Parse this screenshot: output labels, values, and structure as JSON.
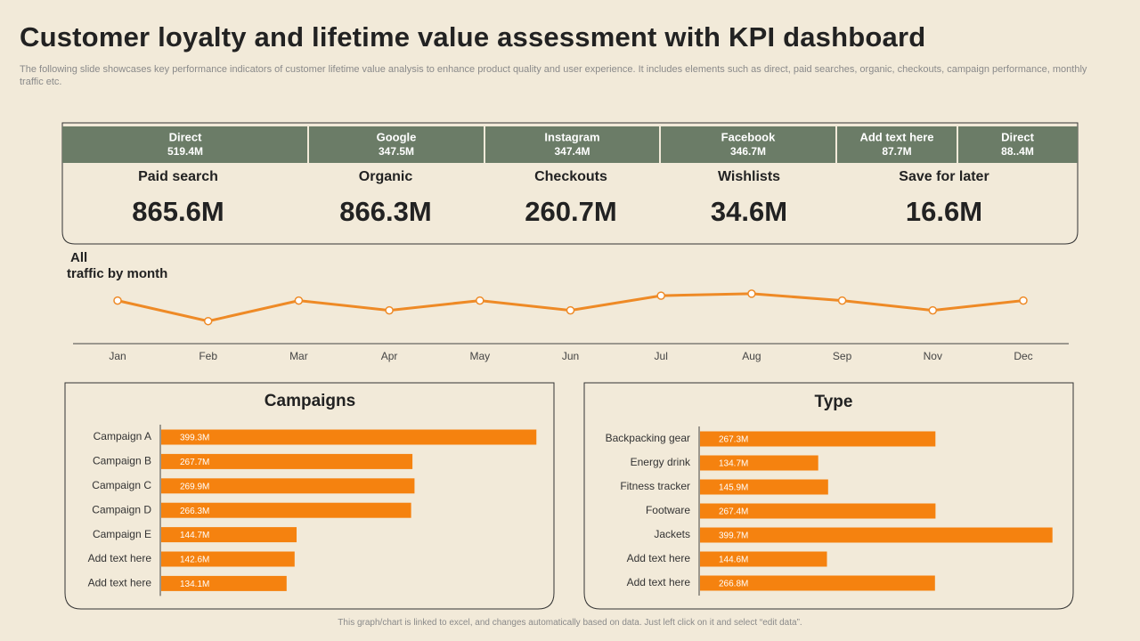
{
  "header": {
    "title": "Customer loyalty and lifetime value assessment with KPI dashboard",
    "subtitle": "The following slide showcases key performance indicators of customer lifetime value analysis to enhance product quality and user experience. It includes elements such as direct, paid searches, organic, checkouts, campaign performance, monthly traffic etc."
  },
  "kpis": {
    "top": [
      {
        "label": "Direct",
        "value": "519.4M"
      },
      {
        "label": "Google",
        "value": "347.5M"
      },
      {
        "label": "Instagram",
        "value": "347.4M"
      },
      {
        "label": "Facebook",
        "value": "346.7M"
      },
      {
        "label": "Add text here",
        "value": "87.7M"
      },
      {
        "label": "Direct",
        "value": "88..4M"
      }
    ],
    "bottom": [
      {
        "label": "Paid search",
        "value": "865.6M"
      },
      {
        "label": "Organic",
        "value": "866.3M"
      },
      {
        "label": "Checkouts",
        "value": "260.7M"
      },
      {
        "label": "Wishlists",
        "value": "34.6M"
      },
      {
        "label": "Save for later",
        "value": "16.6M"
      }
    ]
  },
  "chart_data": [
    {
      "type": "line",
      "title": "All\ntraffic by month",
      "categories": [
        "Jan",
        "Feb",
        "Mar",
        "Apr",
        "May",
        "Jun",
        "Jul",
        "Aug",
        "Sep",
        "Nov",
        "Dec"
      ],
      "values": [
        44,
        23,
        44,
        34,
        44,
        34,
        49,
        51,
        44,
        34,
        44
      ],
      "ylim": [
        0,
        60
      ],
      "color": "#ee8a26"
    },
    {
      "type": "bar",
      "orientation": "horizontal",
      "title": "Campaigns",
      "categories": [
        "Campaign A",
        "Campaign B",
        "Campaign C",
        "Campaign D",
        "Campaign E",
        "Add text here",
        "Add text here"
      ],
      "values": [
        399.3,
        267.7,
        269.9,
        266.3,
        144.7,
        142.6,
        134.1
      ],
      "value_labels": [
        "399.3M",
        "267.7M",
        "269.9M",
        "266.3M",
        "144.7M",
        "142.6M",
        "134.1M"
      ],
      "xlim": [
        0,
        400
      ],
      "color": "#f5820f"
    },
    {
      "type": "bar",
      "orientation": "horizontal",
      "title": "Type",
      "categories": [
        "Backpacking gear",
        "Energy drink",
        "Fitness tracker",
        "Footware",
        "Jackets",
        "Add text here",
        "Add text here"
      ],
      "values": [
        267.3,
        134.7,
        145.9,
        267.4,
        399.7,
        144.6,
        266.8
      ],
      "value_labels": [
        "267.3M",
        "134.7M",
        "145.9M",
        "267.4M",
        "399.7M",
        "144.6M",
        "266.8M"
      ],
      "xlim": [
        0,
        400
      ],
      "color": "#f5820f"
    }
  ],
  "footer": "This graph/chart is linked to excel, and changes automatically based on data. Just left click on it and select “edit data”."
}
